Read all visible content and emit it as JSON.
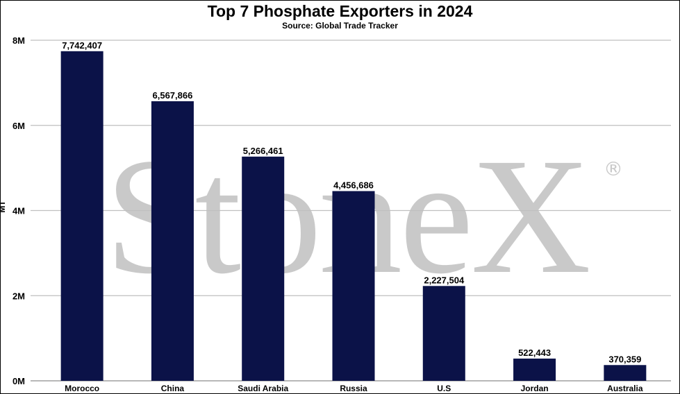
{
  "chart_data": {
    "type": "bar",
    "title": "Top 7 Phosphate Exporters in 2024",
    "subtitle": "Source: Global Trade Tracker",
    "ylabel": "MT",
    "ylim": [
      0,
      8000000
    ],
    "yticks": [
      {
        "value": 0,
        "label": "0M"
      },
      {
        "value": 2000000,
        "label": "2M"
      },
      {
        "value": 4000000,
        "label": "4M"
      },
      {
        "value": 6000000,
        "label": "6M"
      },
      {
        "value": 8000000,
        "label": "8M"
      }
    ],
    "categories": [
      "Morocco",
      "China",
      "Saudi Arabia",
      "Russia",
      "U.S",
      "Jordan",
      "Australia"
    ],
    "values": [
      7742407,
      6567866,
      5266461,
      4456686,
      2227504,
      522443,
      370359
    ],
    "data_labels": [
      "7,742,407",
      "6,567,866",
      "5,266,461",
      "4,456,686",
      "2,227,504",
      "522,443",
      "370,359"
    ],
    "bar_color": "#0b1248",
    "grid": true,
    "legend": "none"
  },
  "watermark": {
    "text": "StoneX",
    "mark": "®",
    "color": "#c9c9c9"
  }
}
